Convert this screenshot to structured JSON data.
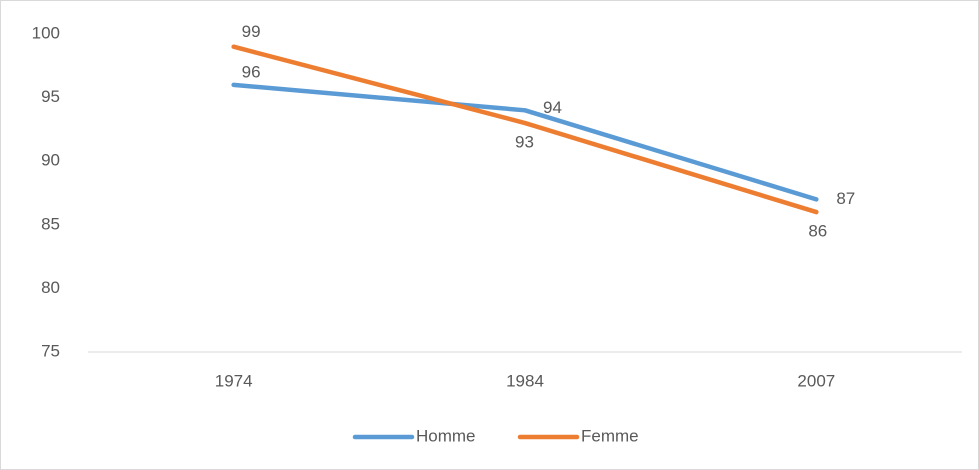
{
  "chart_data": {
    "type": "line",
    "categories": [
      "1974",
      "1984",
      "2007"
    ],
    "series": [
      {
        "name": "Homme",
        "color": "#5b9bd5",
        "values": [
          96,
          94,
          87
        ]
      },
      {
        "name": "Femme",
        "color": "#ed7d31",
        "values": [
          99,
          93,
          86
        ]
      }
    ],
    "ylim": [
      75,
      100
    ],
    "yticks": [
      75,
      80,
      85,
      90,
      95,
      100
    ],
    "grid": false,
    "legend": "bottom"
  }
}
